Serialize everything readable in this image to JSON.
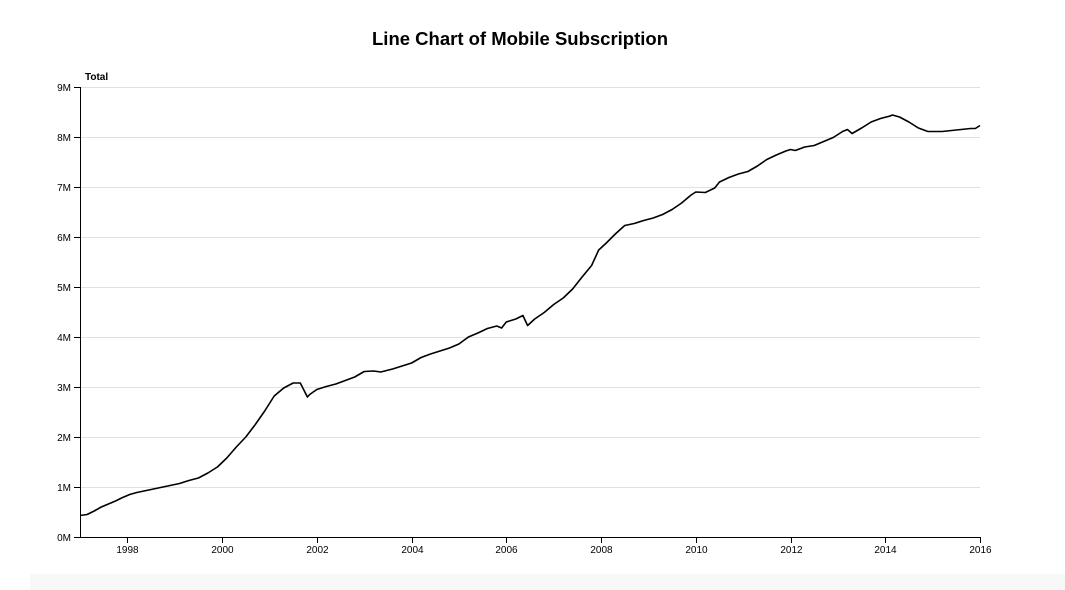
{
  "chart_data": {
    "type": "line",
    "title": "Line Chart of Mobile Subscription",
    "xlabel": "",
    "ylabel": "Total",
    "xlim": [
      1997.0,
      2016.0
    ],
    "ylim": [
      0,
      9000000
    ],
    "grid": "horizontal",
    "legend": "none",
    "colors": {
      "line": "#000000",
      "grid": "#e0e0e0",
      "axis": "#000000"
    },
    "x_ticks": [
      {
        "value": 1998,
        "label": "1998"
      },
      {
        "value": 2000,
        "label": "2000"
      },
      {
        "value": 2002,
        "label": "2002"
      },
      {
        "value": 2004,
        "label": "2004"
      },
      {
        "value": 2006,
        "label": "2006"
      },
      {
        "value": 2008,
        "label": "2008"
      },
      {
        "value": 2010,
        "label": "2010"
      },
      {
        "value": 2012,
        "label": "2012"
      },
      {
        "value": 2014,
        "label": "2014"
      },
      {
        "value": 2016,
        "label": "2016"
      }
    ],
    "y_ticks": [
      {
        "value": 0,
        "label": "0M"
      },
      {
        "value": 1000000,
        "label": "1M"
      },
      {
        "value": 2000000,
        "label": "2M"
      },
      {
        "value": 3000000,
        "label": "3M"
      },
      {
        "value": 4000000,
        "label": "4M"
      },
      {
        "value": 5000000,
        "label": "5M"
      },
      {
        "value": 6000000,
        "label": "6M"
      },
      {
        "value": 7000000,
        "label": "7M"
      },
      {
        "value": 8000000,
        "label": "8M"
      },
      {
        "value": 9000000,
        "label": "9M"
      }
    ],
    "series": [
      {
        "x": [
          1997.0,
          1997.15,
          1997.3,
          1997.45,
          1997.6,
          1997.75,
          1997.9,
          1998.05,
          1998.2,
          1998.5,
          1998.8,
          1999.1,
          1999.3,
          1999.5,
          1999.7,
          1999.9,
          2000.1,
          2000.3,
          2000.5,
          2000.7,
          2000.9,
          2001.1,
          2001.3,
          2001.5,
          2001.65,
          2001.8,
          2001.85,
          2002.0,
          2002.2,
          2002.4,
          2002.6,
          2002.8,
          2003.0,
          2003.2,
          2003.35,
          2003.6,
          2003.8,
          2004.0,
          2004.2,
          2004.4,
          2004.6,
          2004.8,
          2005.0,
          2005.2,
          2005.4,
          2005.6,
          2005.8,
          2005.9,
          2006.0,
          2006.2,
          2006.35,
          2006.45,
          2006.6,
          2006.8,
          2007.0,
          2007.2,
          2007.4,
          2007.6,
          2007.8,
          2007.95,
          2008.1,
          2008.3,
          2008.5,
          2008.7,
          2008.9,
          2009.1,
          2009.3,
          2009.5,
          2009.7,
          2009.9,
          2010.0,
          2010.2,
          2010.4,
          2010.5,
          2010.7,
          2010.9,
          2011.1,
          2011.3,
          2011.5,
          2011.7,
          2011.9,
          2012.0,
          2012.1,
          2012.3,
          2012.5,
          2012.7,
          2012.9,
          2013.1,
          2013.2,
          2013.3,
          2013.5,
          2013.7,
          2013.9,
          2014.1,
          2014.15,
          2014.3,
          2014.5,
          2014.7,
          2014.9,
          2015.2,
          2015.4,
          2015.6,
          2015.8,
          2015.9,
          2016.0
        ],
        "y": [
          430000,
          450000,
          520000,
          600000,
          660000,
          720000,
          790000,
          850000,
          890000,
          950000,
          1010000,
          1070000,
          1130000,
          1180000,
          1280000,
          1400000,
          1580000,
          1800000,
          2000000,
          2250000,
          2520000,
          2820000,
          2980000,
          3080000,
          3080000,
          2800000,
          2850000,
          2950000,
          3010000,
          3060000,
          3130000,
          3200000,
          3310000,
          3320000,
          3300000,
          3360000,
          3420000,
          3480000,
          3590000,
          3660000,
          3720000,
          3780000,
          3860000,
          4000000,
          4080000,
          4170000,
          4220000,
          4180000,
          4300000,
          4360000,
          4430000,
          4230000,
          4360000,
          4490000,
          4650000,
          4780000,
          4960000,
          5200000,
          5430000,
          5740000,
          5870000,
          6060000,
          6230000,
          6270000,
          6330000,
          6380000,
          6450000,
          6550000,
          6680000,
          6840000,
          6900000,
          6890000,
          6980000,
          7100000,
          7190000,
          7260000,
          7310000,
          7420000,
          7550000,
          7640000,
          7720000,
          7750000,
          7730000,
          7800000,
          7830000,
          7910000,
          7990000,
          8110000,
          8150000,
          8070000,
          8180000,
          8300000,
          8370000,
          8420000,
          8440000,
          8400000,
          8300000,
          8180000,
          8110000,
          8110000,
          8130000,
          8150000,
          8170000,
          8170000,
          8230000
        ]
      }
    ]
  }
}
